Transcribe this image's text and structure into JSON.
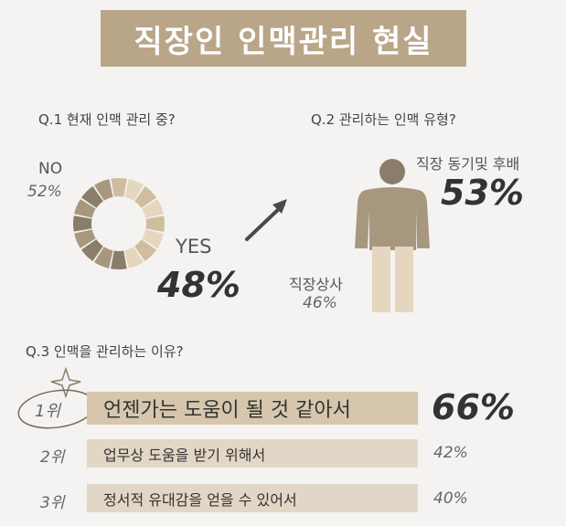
{
  "title": "직장인 인맥관리 현실",
  "colors": {
    "title_bg": "#b9a689",
    "dark_brown": "#8c7c6a",
    "mid_brown": "#a8977f",
    "light_beige": "#e4d6bf",
    "tan": "#cfbd9f"
  },
  "q1": {
    "question": "Q.1 현재 인맥 관리 중?",
    "no_label": "NO",
    "no_pct": "52%",
    "yes_label": "YES",
    "yes_pct": "48%"
  },
  "q2": {
    "question": "Q.2 관리하는 인맥 유형?",
    "peer_label": "직장 동기및 후배",
    "peer_pct": "53%",
    "boss_label": "직장상사",
    "boss_pct": "46%"
  },
  "q3": {
    "question": "Q.3 인맥을 관리하는 이유?",
    "rows": [
      {
        "rank": "1위",
        "reason": "언젠가는 도움이 될 것 같아서",
        "pct": "66%"
      },
      {
        "rank": "2위",
        "reason": "업무상 도움을 받기 위해서",
        "pct": "42%"
      },
      {
        "rank": "3위",
        "reason": "정서적 유대감을 얻을 수 있어서",
        "pct": "40%"
      }
    ]
  },
  "chart_data": [
    {
      "type": "pie",
      "categories": [
        "NO",
        "YES"
      ],
      "values": [
        52,
        48
      ]
    },
    {
      "type": "bar",
      "categories": [
        "직장 동기및 후배",
        "직장상사"
      ],
      "values": [
        53,
        46
      ]
    },
    {
      "type": "bar",
      "categories": [
        "언젠가는 도움이 될 것 같아서",
        "업무상 도움을 받기 위해서",
        "정서적 유대감을 얻을 수 있어서"
      ],
      "values": [
        66,
        42,
        40
      ]
    }
  ]
}
